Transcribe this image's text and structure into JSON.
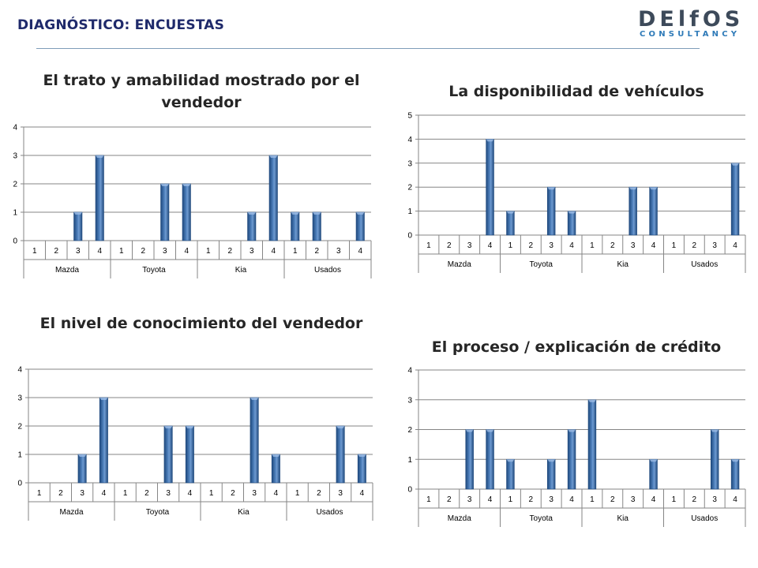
{
  "header": {
    "title": "DIAGNÓSTICO: ENCUESTAS",
    "logo_main": "DElfOS",
    "logo_sub": "CONSULTANCY"
  },
  "colors": {
    "bar": "#4f81bd",
    "bar_dark": "#1f497d",
    "grid": "#868686",
    "title": "#1f2a6b"
  },
  "chart_data": [
    {
      "type": "bar",
      "title": "El trato y amabilidad mostrado por el vendedor",
      "groups": [
        "Mazda",
        "Toyota",
        "Kia",
        "Usados"
      ],
      "categories": [
        "1",
        "2",
        "3",
        "4",
        "1",
        "2",
        "3",
        "4",
        "1",
        "2",
        "3",
        "4",
        "1",
        "2",
        "3",
        "4"
      ],
      "values": [
        0,
        0,
        1,
        3,
        0,
        0,
        2,
        2,
        0,
        0,
        1,
        3,
        1,
        1,
        0,
        1
      ],
      "ylim": [
        0,
        4
      ],
      "yticks": [
        "0",
        "1",
        "2",
        "3",
        "4"
      ],
      "grid": true
    },
    {
      "type": "bar",
      "title": "La disponibilidad de vehículos",
      "groups": [
        "Mazda",
        "Toyota",
        "Kia",
        "Usados"
      ],
      "categories": [
        "1",
        "2",
        "3",
        "4",
        "1",
        "2",
        "3",
        "4",
        "1",
        "2",
        "3",
        "4",
        "1",
        "2",
        "3",
        "4"
      ],
      "values": [
        0,
        0,
        0,
        4,
        1,
        0,
        2,
        1,
        0,
        0,
        2,
        2,
        0,
        0,
        0,
        3
      ],
      "ylim": [
        0,
        5
      ],
      "yticks": [
        "0",
        "1",
        "2",
        "3",
        "4",
        "5"
      ],
      "grid": true
    },
    {
      "type": "bar",
      "title": "El nivel de conocimiento del vendedor",
      "groups": [
        "Mazda",
        "Toyota",
        "Kia",
        "Usados"
      ],
      "categories": [
        "1",
        "2",
        "3",
        "4",
        "1",
        "2",
        "3",
        "4",
        "1",
        "2",
        "3",
        "4",
        "1",
        "2",
        "3",
        "4"
      ],
      "values": [
        0,
        0,
        1,
        3,
        0,
        0,
        2,
        2,
        0,
        0,
        3,
        1,
        0,
        0,
        2,
        1
      ],
      "ylim": [
        0,
        4
      ],
      "yticks": [
        "0",
        "1",
        "2",
        "3",
        "4"
      ],
      "grid": true
    },
    {
      "type": "bar",
      "title": "El proceso / explicación de crédito",
      "groups": [
        "Mazda",
        "Toyota",
        "Kia",
        "Usados"
      ],
      "categories": [
        "1",
        "2",
        "3",
        "4",
        "1",
        "2",
        "3",
        "4",
        "1",
        "2",
        "3",
        "4",
        "1",
        "2",
        "3",
        "4"
      ],
      "values": [
        0,
        0,
        2,
        2,
        1,
        0,
        1,
        2,
        3,
        0,
        0,
        1,
        0,
        0,
        2,
        1
      ],
      "ylim": [
        0,
        4
      ],
      "yticks": [
        "0",
        "1",
        "2",
        "3",
        "4"
      ],
      "grid": true
    }
  ]
}
